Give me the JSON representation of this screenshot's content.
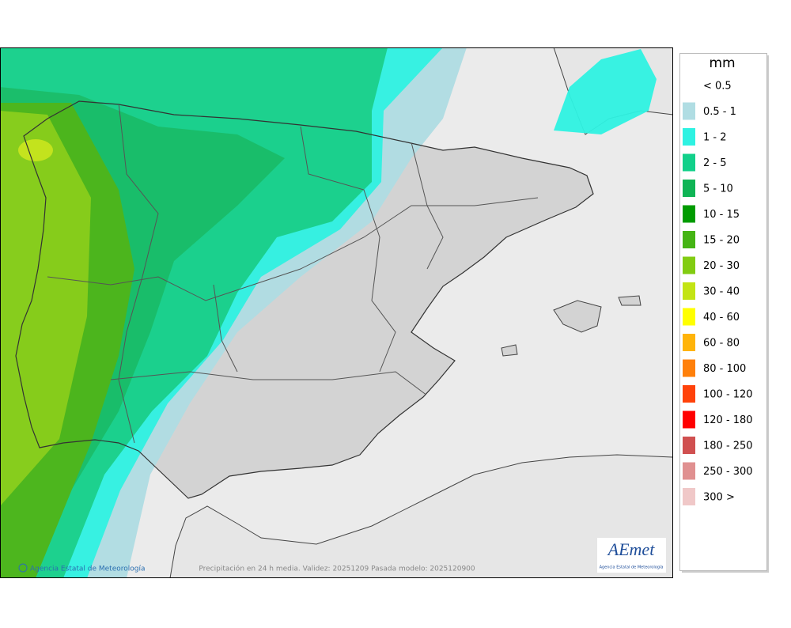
{
  "legend": {
    "unit": "mm",
    "items": [
      {
        "label": "< 0.5"
      },
      {
        "label": "0.5 - 1",
        "color": "#b0dde3"
      },
      {
        "label": "1 - 2",
        "color": "#2ef2e2"
      },
      {
        "label": "2 - 5",
        "color": "#12d08a"
      },
      {
        "label": "5 - 10",
        "color": "#0fb455"
      },
      {
        "label": "10 - 15",
        "color": "#009b00"
      },
      {
        "label": "15 - 20",
        "color": "#45b414"
      },
      {
        "label": "20 - 30",
        "color": "#82cc12"
      },
      {
        "label": "30 - 40",
        "color": "#c3e414"
      },
      {
        "label": "40 - 60",
        "color": "#ffff00"
      },
      {
        "label": "60 - 80",
        "color": "#ffb40a"
      },
      {
        "label": "80 - 100",
        "color": "#ff800a"
      },
      {
        "label": "100 - 120",
        "color": "#ff420a"
      },
      {
        "label": "120 - 180",
        "color": "#ff0000"
      },
      {
        "label": "180 - 250",
        "color": "#d05050"
      },
      {
        "label": "250 - 300",
        "color": "#e09090"
      },
      {
        "label": "300 >",
        "color": "#f0c8c8"
      }
    ]
  },
  "footer": {
    "credit": "Agencia Estatal de Meteorología",
    "caption": "Precipitación en 24 h media. Validez: 20251209 Pasada modelo: 2025120900"
  },
  "logo": {
    "name": "AEmet",
    "subtitle": "Agencia Estatal de Meteorología"
  }
}
